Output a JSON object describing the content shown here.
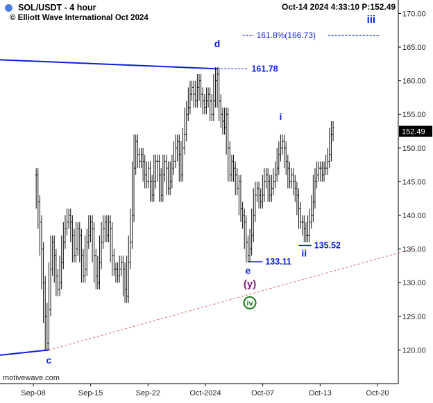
{
  "header": {
    "symbol_title": "SOL/USDT - 4 hour",
    "copyright": "© Elliott Wave International Oct 2024",
    "status": "Oct-14 2024  4:33:10  P:152.49"
  },
  "footer": {
    "watermark": "motivewave.com"
  },
  "colors": {
    "accent_blue": "#0b1fd6",
    "wave_purple": "#7b1f7b",
    "wave_green": "#1a7a1a",
    "support_line": "#e06060",
    "price_bars": "#111111",
    "symbol_dot": "#4a7fe0"
  },
  "chart_data": {
    "type": "ohlc",
    "y_axis": {
      "min": 115,
      "max": 172,
      "ticks": [
        120,
        125,
        130,
        135,
        140,
        145,
        150,
        155,
        160,
        165,
        170
      ],
      "tick_labels": [
        "120.00",
        "125.00",
        "130.00",
        "135.00",
        "140.00",
        "145.00",
        "150.00",
        "155.00",
        "160.00",
        "165.00",
        "170.00"
      ]
    },
    "x_axis": {
      "labels": [
        "Sep-08",
        "Sep-15",
        "Sep-22",
        "Oct-2024",
        "Oct-07",
        "Oct-13",
        "Oct-20"
      ]
    },
    "last_price": "152.49",
    "price_bars": [
      [
        20,
        146
      ],
      [
        21,
        142
      ],
      [
        22,
        139
      ],
      [
        23,
        135
      ],
      [
        24,
        130
      ],
      [
        25,
        125
      ],
      [
        26,
        121
      ],
      [
        27,
        126
      ],
      [
        28,
        132
      ],
      [
        29,
        136
      ],
      [
        30,
        134
      ],
      [
        31,
        131
      ],
      [
        32,
        129
      ],
      [
        33,
        130
      ],
      [
        34,
        133
      ],
      [
        35,
        136
      ],
      [
        36,
        138
      ],
      [
        37,
        139
      ],
      [
        38,
        140
      ],
      [
        39,
        139
      ],
      [
        40,
        137
      ],
      [
        41,
        134
      ],
      [
        42,
        135
      ],
      [
        43,
        138
      ],
      [
        44,
        137
      ],
      [
        45,
        134
      ],
      [
        46,
        131
      ],
      [
        47,
        132
      ],
      [
        48,
        136
      ],
      [
        49,
        137
      ],
      [
        50,
        139
      ],
      [
        51,
        138
      ],
      [
        52,
        134
      ],
      [
        53,
        131
      ],
      [
        54,
        130
      ],
      [
        55,
        133
      ],
      [
        56,
        136
      ],
      [
        57,
        138
      ],
      [
        58,
        139
      ],
      [
        59,
        137
      ],
      [
        60,
        139
      ],
      [
        61,
        138
      ],
      [
        62,
        134
      ],
      [
        63,
        132
      ],
      [
        64,
        132
      ],
      [
        65,
        131
      ],
      [
        66,
        132
      ],
      [
        67,
        133
      ],
      [
        68,
        132
      ],
      [
        69,
        129
      ],
      [
        70,
        128
      ],
      [
        71,
        133
      ],
      [
        72,
        136
      ],
      [
        73,
        140
      ],
      [
        74,
        147
      ],
      [
        75,
        151
      ],
      [
        76,
        149
      ],
      [
        77,
        148
      ],
      [
        78,
        149
      ],
      [
        79,
        148
      ],
      [
        80,
        146
      ],
      [
        81,
        145
      ],
      [
        82,
        147
      ],
      [
        83,
        145
      ],
      [
        84,
        143
      ],
      [
        85,
        145
      ],
      [
        86,
        148
      ],
      [
        87,
        148
      ],
      [
        88,
        146
      ],
      [
        89,
        143
      ],
      [
        90,
        146
      ],
      [
        91,
        148
      ],
      [
        92,
        147
      ],
      [
        93,
        144
      ],
      [
        94,
        145
      ],
      [
        95,
        147
      ],
      [
        96,
        148
      ],
      [
        97,
        150
      ],
      [
        98,
        151
      ],
      [
        99,
        149
      ],
      [
        100,
        146
      ],
      [
        101,
        150
      ],
      [
        102,
        152
      ],
      [
        103,
        155
      ],
      [
        104,
        156
      ],
      [
        105,
        158
      ],
      [
        106,
        159
      ],
      [
        107,
        158
      ],
      [
        108,
        157
      ],
      [
        109,
        159
      ],
      [
        110,
        160
      ],
      [
        111,
        158
      ],
      [
        112,
        157
      ],
      [
        113,
        156
      ],
      [
        114,
        157
      ],
      [
        115,
        158
      ],
      [
        116,
        157
      ],
      [
        117,
        155
      ],
      [
        118,
        157
      ],
      [
        119,
        160
      ],
      [
        120,
        161
      ],
      [
        121,
        157
      ],
      [
        122,
        155
      ],
      [
        123,
        154
      ],
      [
        124,
        153
      ],
      [
        125,
        155
      ],
      [
        126,
        150
      ],
      [
        127,
        146
      ],
      [
        128,
        148
      ],
      [
        129,
        147
      ],
      [
        130,
        146
      ],
      [
        131,
        144
      ],
      [
        132,
        145
      ],
      [
        133,
        141
      ],
      [
        134,
        140
      ],
      [
        135,
        139
      ],
      [
        136,
        136
      ],
      [
        137,
        134
      ],
      [
        138,
        135
      ],
      [
        139,
        137
      ],
      [
        140,
        140
      ],
      [
        141,
        143
      ],
      [
        142,
        144
      ],
      [
        143,
        143
      ],
      [
        144,
        142
      ],
      [
        145,
        143
      ],
      [
        146,
        145
      ],
      [
        147,
        146
      ],
      [
        148,
        145
      ],
      [
        149,
        143
      ],
      [
        150,
        144
      ],
      [
        151,
        145
      ],
      [
        152,
        146
      ],
      [
        153,
        147
      ],
      [
        154,
        149
      ],
      [
        155,
        150
      ],
      [
        156,
        151
      ],
      [
        157,
        150
      ],
      [
        158,
        148
      ],
      [
        159,
        147
      ],
      [
        160,
        145
      ],
      [
        161,
        146
      ],
      [
        162,
        145
      ],
      [
        163,
        144
      ],
      [
        164,
        143
      ],
      [
        165,
        141
      ],
      [
        166,
        139
      ],
      [
        167,
        139
      ],
      [
        168,
        138
      ],
      [
        169,
        137
      ],
      [
        170,
        137
      ],
      [
        171,
        139
      ],
      [
        172,
        140
      ],
      [
        173,
        142
      ],
      [
        174,
        145
      ],
      [
        175,
        146
      ],
      [
        176,
        147
      ],
      [
        177,
        147
      ],
      [
        178,
        146
      ],
      [
        179,
        147
      ],
      [
        180,
        147
      ],
      [
        181,
        148
      ],
      [
        182,
        149
      ],
      [
        183,
        152
      ],
      [
        184,
        153
      ]
    ],
    "bar_index_domain": [
      0,
      220
    ],
    "trendlines": [
      {
        "name": "upper-channel-line",
        "from": [
          -8,
          163.2
        ],
        "to": [
          120,
          161.78
        ],
        "color": "accent_blue"
      },
      {
        "name": "lower-channel-line",
        "from": [
          -8,
          119.0
        ],
        "to": [
          27,
          120.0
        ],
        "color": "accent_blue"
      },
      {
        "name": "support-line",
        "from": [
          27,
          120.0
        ],
        "to": [
          228,
          135.0
        ],
        "color": "support_line",
        "dashed": true
      }
    ],
    "levels": [
      {
        "name": "level-161-78",
        "label": "161.78",
        "value": 161.78,
        "from_bar": 120,
        "to_bar": 137
      },
      {
        "name": "level-133-11",
        "label": "133.11",
        "value": 133.11,
        "from_bar": 137,
        "to_bar": 145
      },
      {
        "name": "level-135-52",
        "label": "135.52",
        "value": 135.52,
        "from_bar": 165,
        "to_bar": 172
      },
      {
        "name": "fib-target",
        "label": "161.8%(166.73)",
        "value": 166.73,
        "from_bar": 134,
        "to_bar": 210
      }
    ],
    "wave_labels": [
      {
        "name": "wave-c-label",
        "text": "c",
        "bar": 27,
        "price": 118,
        "color": "accent_blue"
      },
      {
        "name": "wave-d-label",
        "text": "d",
        "bar": 120,
        "price": 165,
        "color": "accent_blue"
      },
      {
        "name": "wave-e-label",
        "text": "e",
        "bar": 137,
        "price": 131.3,
        "color": "accent_blue"
      },
      {
        "name": "wave-i-label",
        "text": "i",
        "bar": 155,
        "price": 154.2,
        "color": "accent_blue"
      },
      {
        "name": "wave-ii-label",
        "text": "ii",
        "bar": 168,
        "price": 133.9,
        "color": "accent_blue"
      },
      {
        "name": "wave-iii-label",
        "text": "iii",
        "bar": 205,
        "price": 168.6,
        "color": "accent_blue"
      },
      {
        "name": "wave-y-label",
        "text": "(y)",
        "bar": 138,
        "price": 129.3,
        "color": "wave_purple"
      },
      {
        "name": "wave-iv-label",
        "text": "iv",
        "bar": 138,
        "price": 126.6,
        "color": "wave_green",
        "circled": true
      }
    ]
  }
}
